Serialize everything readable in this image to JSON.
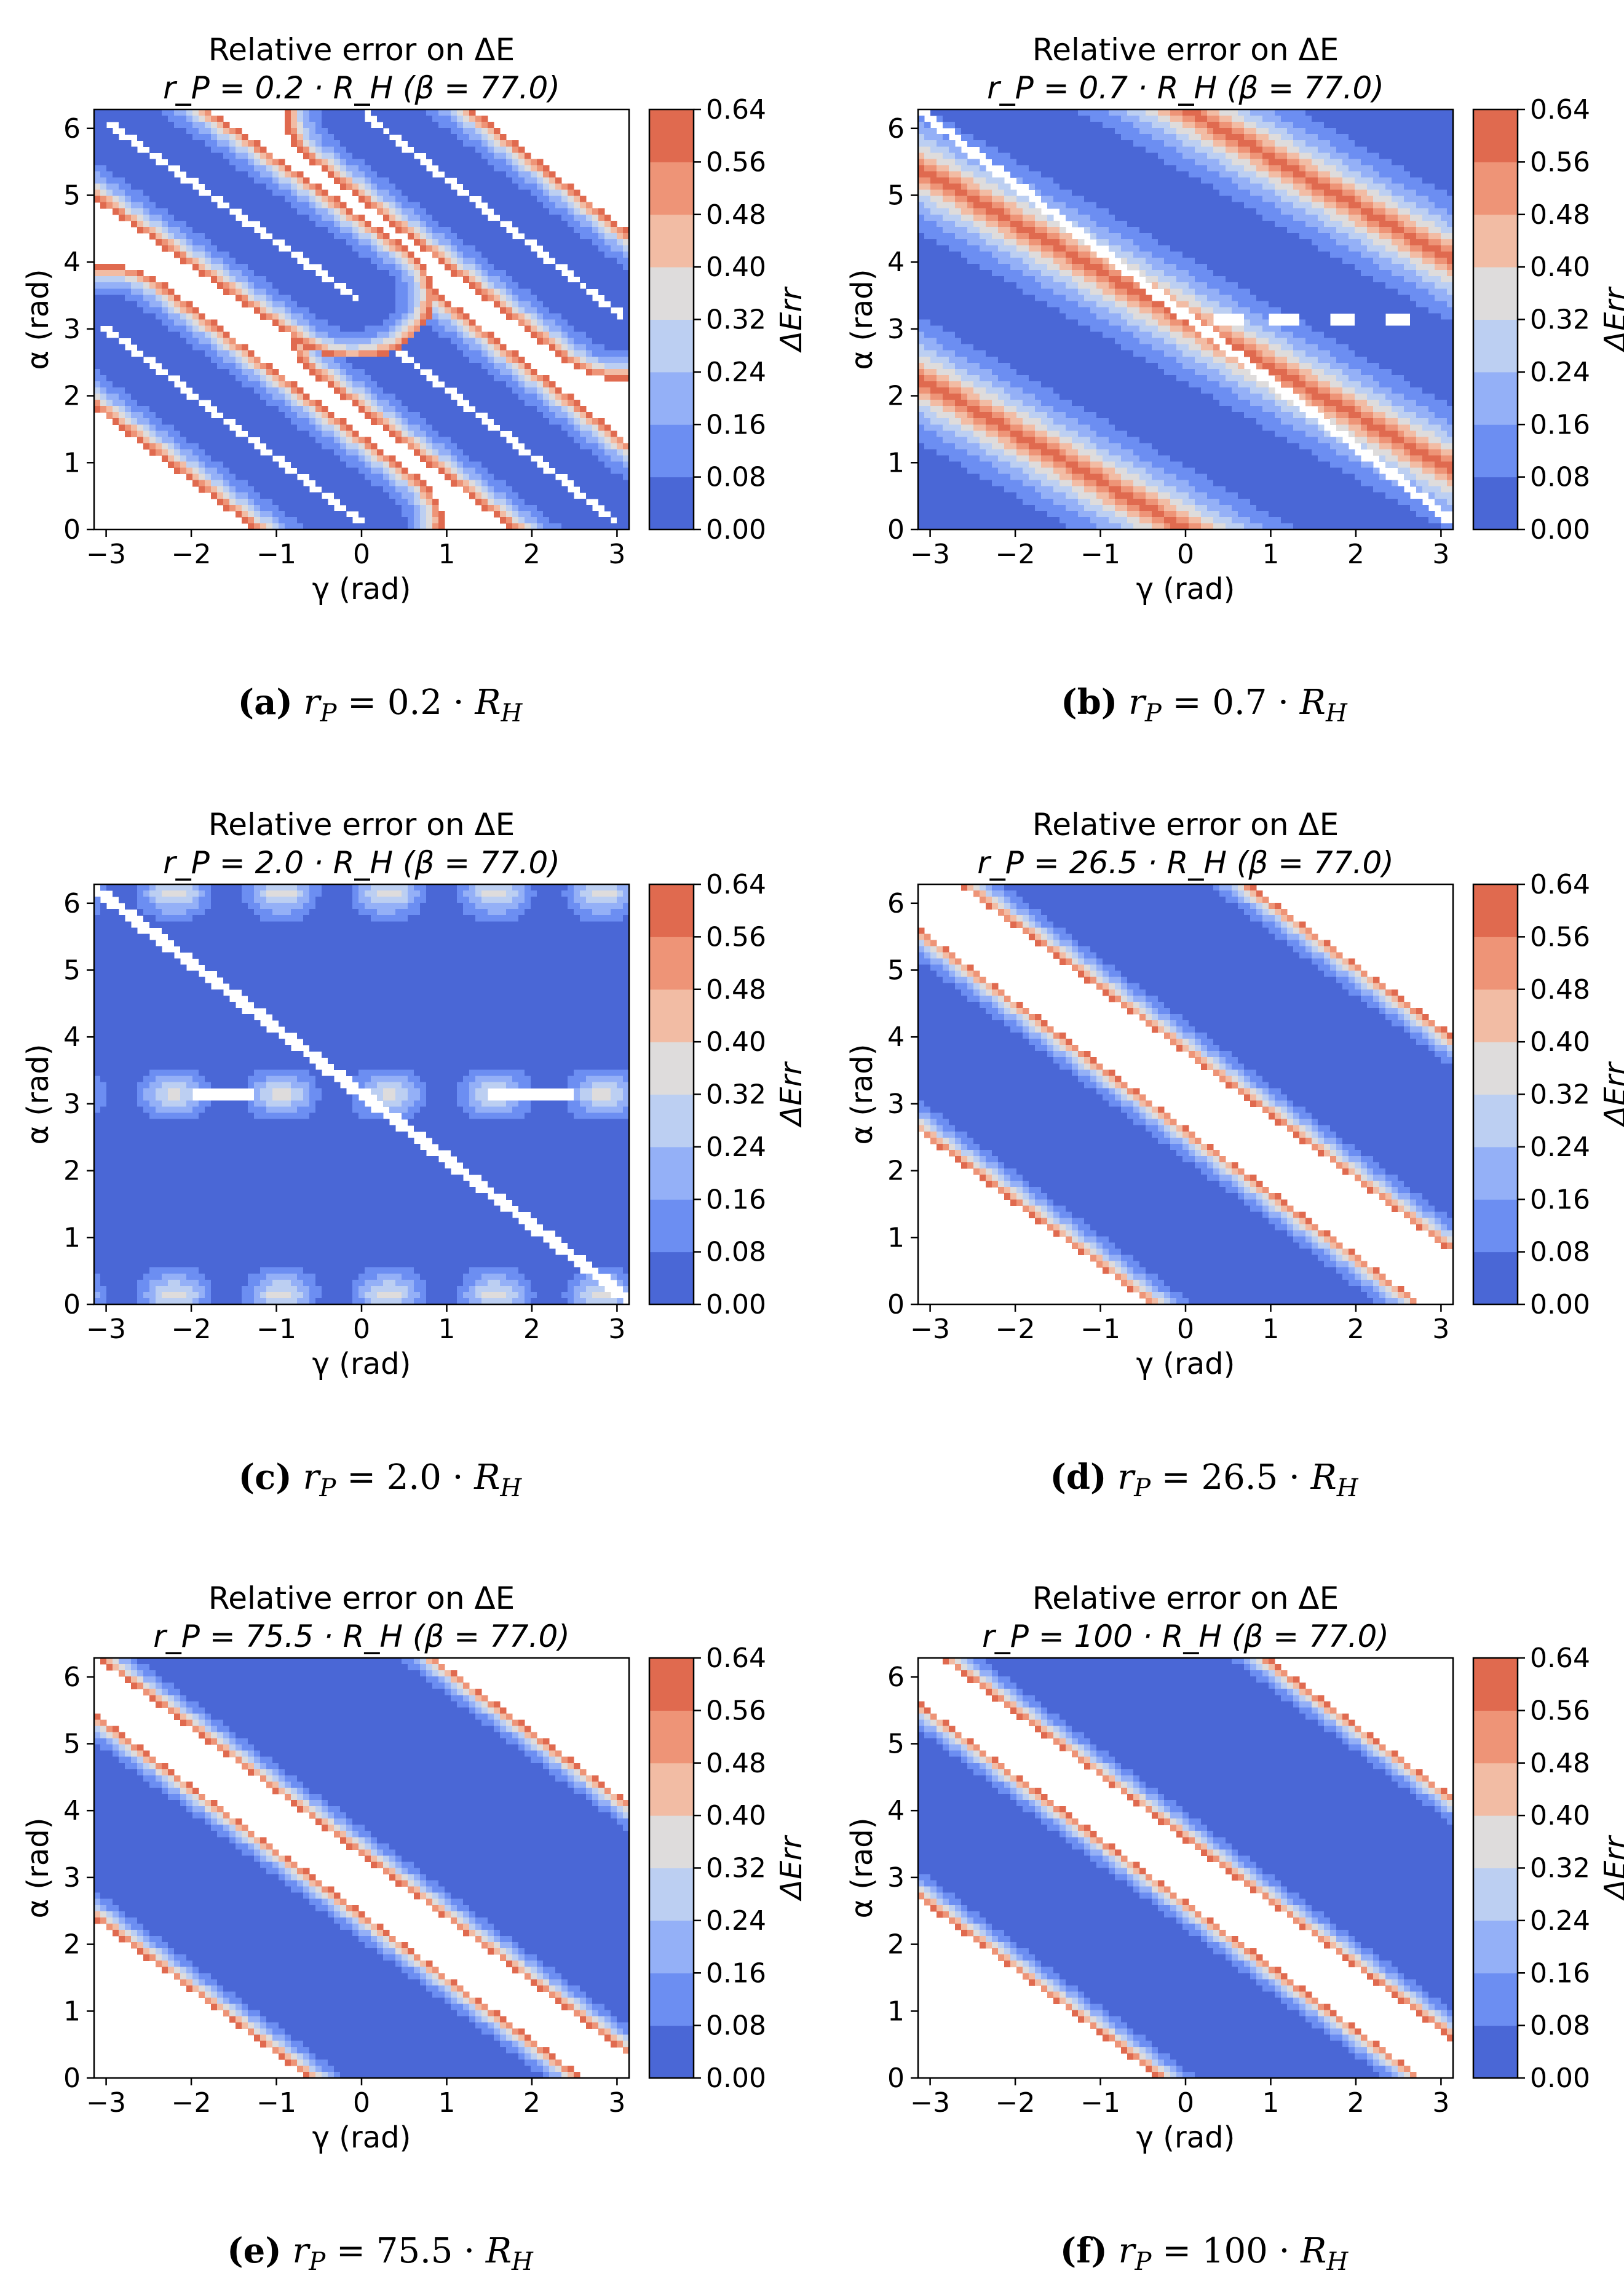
{
  "chart_data": [
    {
      "type": "heatmap",
      "title_line1": "Relative error on ΔE",
      "title_line2": "r_P = 0.2 · R_H (β = 77.0)",
      "xlabel": "γ (rad)",
      "ylabel": "α (rad)",
      "colorbar_label": "ΔErr",
      "xlim": [
        -3.14159,
        3.14159
      ],
      "ylim": [
        0,
        6.28318
      ],
      "x_ticks": [
        -3,
        -2,
        -1,
        0,
        1,
        2,
        3
      ],
      "x_tick_labels": [
        "−3",
        "−2",
        "−1",
        "0",
        "1",
        "2",
        "3"
      ],
      "y_ticks": [
        0,
        1,
        2,
        3,
        4,
        5,
        6
      ],
      "y_tick_labels": [
        "0",
        "1",
        "2",
        "3",
        "4",
        "5",
        "6"
      ],
      "colorbar_levels": [
        0.0,
        0.08,
        0.16,
        0.24,
        0.32,
        0.4,
        0.48,
        0.56,
        0.64
      ],
      "colorbar_tick_labels": [
        "0.00",
        "0.08",
        "0.16",
        "0.24",
        "0.32",
        "0.40",
        "0.48",
        "0.56",
        "0.64"
      ],
      "pattern": "four-lobes",
      "caption_letter": "(a)",
      "caption_value": "0.2",
      "caption_rp": "r",
      "caption_rp_sub": "P",
      "caption_eq": "=",
      "caption_dot": "·",
      "caption_rh": "R",
      "caption_rh_sub": "H"
    },
    {
      "type": "heatmap",
      "title_line1": "Relative error on ΔE",
      "title_line2": "r_P = 0.7 · R_H (β = 77.0)",
      "xlabel": "γ (rad)",
      "ylabel": "α (rad)",
      "colorbar_label": "ΔErr",
      "xlim": [
        -3.14159,
        3.14159
      ],
      "ylim": [
        0,
        6.28318
      ],
      "x_ticks": [
        -3,
        -2,
        -1,
        0,
        1,
        2,
        3
      ],
      "x_tick_labels": [
        "−3",
        "−2",
        "−1",
        "0",
        "1",
        "2",
        "3"
      ],
      "y_ticks": [
        0,
        1,
        2,
        3,
        4,
        5,
        6
      ],
      "y_tick_labels": [
        "0",
        "1",
        "2",
        "3",
        "4",
        "5",
        "6"
      ],
      "colorbar_levels": [
        0.0,
        0.08,
        0.16,
        0.24,
        0.32,
        0.4,
        0.48,
        0.56,
        0.64
      ],
      "colorbar_tick_labels": [
        "0.00",
        "0.08",
        "0.16",
        "0.24",
        "0.32",
        "0.40",
        "0.48",
        "0.56",
        "0.64"
      ],
      "pattern": "bands-full",
      "caption_letter": "(b)",
      "caption_value": "0.7",
      "caption_rp": "r",
      "caption_rp_sub": "P",
      "caption_eq": "=",
      "caption_dot": "·",
      "caption_rh": "R",
      "caption_rh_sub": "H"
    },
    {
      "type": "heatmap",
      "title_line1": "Relative error on ΔE",
      "title_line2": "r_P = 2.0 · R_H (β = 77.0)",
      "xlabel": "γ (rad)",
      "ylabel": "α (rad)",
      "colorbar_label": "ΔErr",
      "xlim": [
        -3.14159,
        3.14159
      ],
      "ylim": [
        0,
        6.28318
      ],
      "x_ticks": [
        -3,
        -2,
        -1,
        0,
        1,
        2,
        3
      ],
      "x_tick_labels": [
        "−3",
        "−2",
        "−1",
        "0",
        "1",
        "2",
        "3"
      ],
      "y_ticks": [
        0,
        1,
        2,
        3,
        4,
        5,
        6
      ],
      "y_tick_labels": [
        "0",
        "1",
        "2",
        "3",
        "4",
        "5",
        "6"
      ],
      "colorbar_levels": [
        0.0,
        0.08,
        0.16,
        0.24,
        0.32,
        0.4,
        0.48,
        0.56,
        0.64
      ],
      "colorbar_tick_labels": [
        "0.00",
        "0.08",
        "0.16",
        "0.24",
        "0.32",
        "0.40",
        "0.48",
        "0.56",
        "0.64"
      ],
      "pattern": "mostly-low",
      "caption_letter": "(c)",
      "caption_value": "2.0",
      "caption_rp": "r",
      "caption_rp_sub": "P",
      "caption_eq": "=",
      "caption_dot": "·",
      "caption_rh": "R",
      "caption_rh_sub": "H"
    },
    {
      "type": "heatmap",
      "title_line1": "Relative error on ΔE",
      "title_line2": "r_P = 26.5 · R_H (β = 77.0)",
      "xlabel": "γ (rad)",
      "ylabel": "α (rad)",
      "colorbar_label": "ΔErr",
      "xlim": [
        -3.14159,
        3.14159
      ],
      "ylim": [
        0,
        6.28318
      ],
      "x_ticks": [
        -3,
        -2,
        -1,
        0,
        1,
        2,
        3
      ],
      "x_tick_labels": [
        "−3",
        "−2",
        "−1",
        "0",
        "1",
        "2",
        "3"
      ],
      "y_ticks": [
        0,
        1,
        2,
        3,
        4,
        5,
        6
      ],
      "y_tick_labels": [
        "0",
        "1",
        "2",
        "3",
        "4",
        "5",
        "6"
      ],
      "colorbar_levels": [
        0.0,
        0.08,
        0.16,
        0.24,
        0.32,
        0.4,
        0.48,
        0.56,
        0.64
      ],
      "colorbar_tick_labels": [
        "0.00",
        "0.08",
        "0.16",
        "0.24",
        "0.32",
        "0.40",
        "0.48",
        "0.56",
        "0.64"
      ],
      "pattern": "diagonal-stripe",
      "caption_letter": "(d)",
      "caption_value": "26.5",
      "caption_rp": "r",
      "caption_rp_sub": "P",
      "caption_eq": "=",
      "caption_dot": "·",
      "caption_rh": "R",
      "caption_rh_sub": "H"
    },
    {
      "type": "heatmap",
      "title_line1": "Relative error on ΔE",
      "title_line2": "r_P = 75.5 · R_H (β = 77.0)",
      "xlabel": "γ (rad)",
      "ylabel": "α (rad)",
      "colorbar_label": "ΔErr",
      "xlim": [
        -3.14159,
        3.14159
      ],
      "ylim": [
        0,
        6.28318
      ],
      "x_ticks": [
        -3,
        -2,
        -1,
        0,
        1,
        2,
        3
      ],
      "x_tick_labels": [
        "−3",
        "−2",
        "−1",
        "0",
        "1",
        "2",
        "3"
      ],
      "y_ticks": [
        0,
        1,
        2,
        3,
        4,
        5,
        6
      ],
      "y_tick_labels": [
        "0",
        "1",
        "2",
        "3",
        "4",
        "5",
        "6"
      ],
      "colorbar_levels": [
        0.0,
        0.08,
        0.16,
        0.24,
        0.32,
        0.4,
        0.48,
        0.56,
        0.64
      ],
      "colorbar_tick_labels": [
        "0.00",
        "0.08",
        "0.16",
        "0.24",
        "0.32",
        "0.40",
        "0.48",
        "0.56",
        "0.64"
      ],
      "pattern": "two-stripes",
      "caption_letter": "(e)",
      "caption_value": "75.5",
      "caption_rp": "r",
      "caption_rp_sub": "P",
      "caption_eq": "=",
      "caption_dot": "·",
      "caption_rh": "R",
      "caption_rh_sub": "H"
    },
    {
      "type": "heatmap",
      "title_line1": "Relative error on ΔE",
      "title_line2": "r_P = 100 · R_H (β = 77.0)",
      "xlabel": "γ (rad)",
      "ylabel": "α (rad)",
      "colorbar_label": "ΔErr",
      "xlim": [
        -3.14159,
        3.14159
      ],
      "ylim": [
        0,
        6.28318
      ],
      "x_ticks": [
        -3,
        -2,
        -1,
        0,
        1,
        2,
        3
      ],
      "x_tick_labels": [
        "−3",
        "−2",
        "−1",
        "0",
        "1",
        "2",
        "3"
      ],
      "y_ticks": [
        0,
        1,
        2,
        3,
        4,
        5,
        6
      ],
      "y_tick_labels": [
        "0",
        "1",
        "2",
        "3",
        "4",
        "5",
        "6"
      ],
      "colorbar_levels": [
        0.0,
        0.08,
        0.16,
        0.24,
        0.32,
        0.4,
        0.48,
        0.56,
        0.64
      ],
      "colorbar_tick_labels": [
        "0.00",
        "0.08",
        "0.16",
        "0.24",
        "0.32",
        "0.40",
        "0.48",
        "0.56",
        "0.64"
      ],
      "pattern": "two-stripes-shifted",
      "caption_letter": "(f)",
      "caption_value": "100",
      "caption_rp": "r",
      "caption_rp_sub": "P",
      "caption_eq": "=",
      "caption_dot": "·",
      "caption_rh": "R",
      "caption_rh_sub": "H"
    }
  ],
  "colors": {
    "level_fills": [
      "#4a67d6",
      "#6c8ef2",
      "#94b0f7",
      "#bccff2",
      "#dedcdc",
      "#f2bca4",
      "#ee9477",
      "#e06a4f",
      "#c93a34"
    ],
    "background": "#ffffff",
    "axis": "#000000"
  }
}
